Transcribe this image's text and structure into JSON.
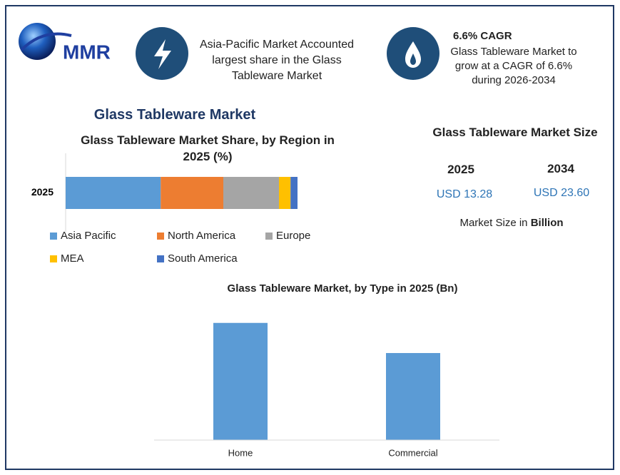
{
  "logo": "MMR",
  "header": {
    "info1": "Asia-Pacific Market Accounted largest share in the Glass Tableware Market",
    "info2_title": "6.6% CAGR",
    "info2_text": "Glass Tableware Market to grow at a CAGR of 6.6% during 2026-2034"
  },
  "page_title": "Glass Tableware Market",
  "market_size": {
    "title": "Glass Tableware Market Size",
    "years": [
      "2025",
      "2034"
    ],
    "values": [
      "USD 13.28",
      "USD 23.60"
    ],
    "note": "Market Size in",
    "note_unit": "Billion"
  },
  "chart_data": [
    {
      "type": "stacked-bar",
      "title": "Glass Tableware Market Share, by Region in 2025 (%)",
      "categories": [
        "2025"
      ],
      "xlim": [
        0,
        100
      ],
      "series": [
        {
          "name": "Asia Pacific",
          "color": "#5b9bd5",
          "values": [
            41
          ]
        },
        {
          "name": "North America",
          "color": "#ed7d31",
          "values": [
            27
          ]
        },
        {
          "name": "Europe",
          "color": "#a5a5a5",
          "values": [
            24
          ]
        },
        {
          "name": "MEA",
          "color": "#ffc000",
          "values": [
            5
          ]
        },
        {
          "name": "South America",
          "color": "#4472c4",
          "values": [
            3
          ]
        }
      ]
    },
    {
      "type": "bar",
      "title": "Glass Tableware Market, by Type in 2025 (Bn)",
      "categories": [
        "Home",
        "Commercial"
      ],
      "values": [
        7.62,
        5.66
      ],
      "color": "#5b9bd5",
      "ylim": [
        0,
        9
      ]
    }
  ]
}
